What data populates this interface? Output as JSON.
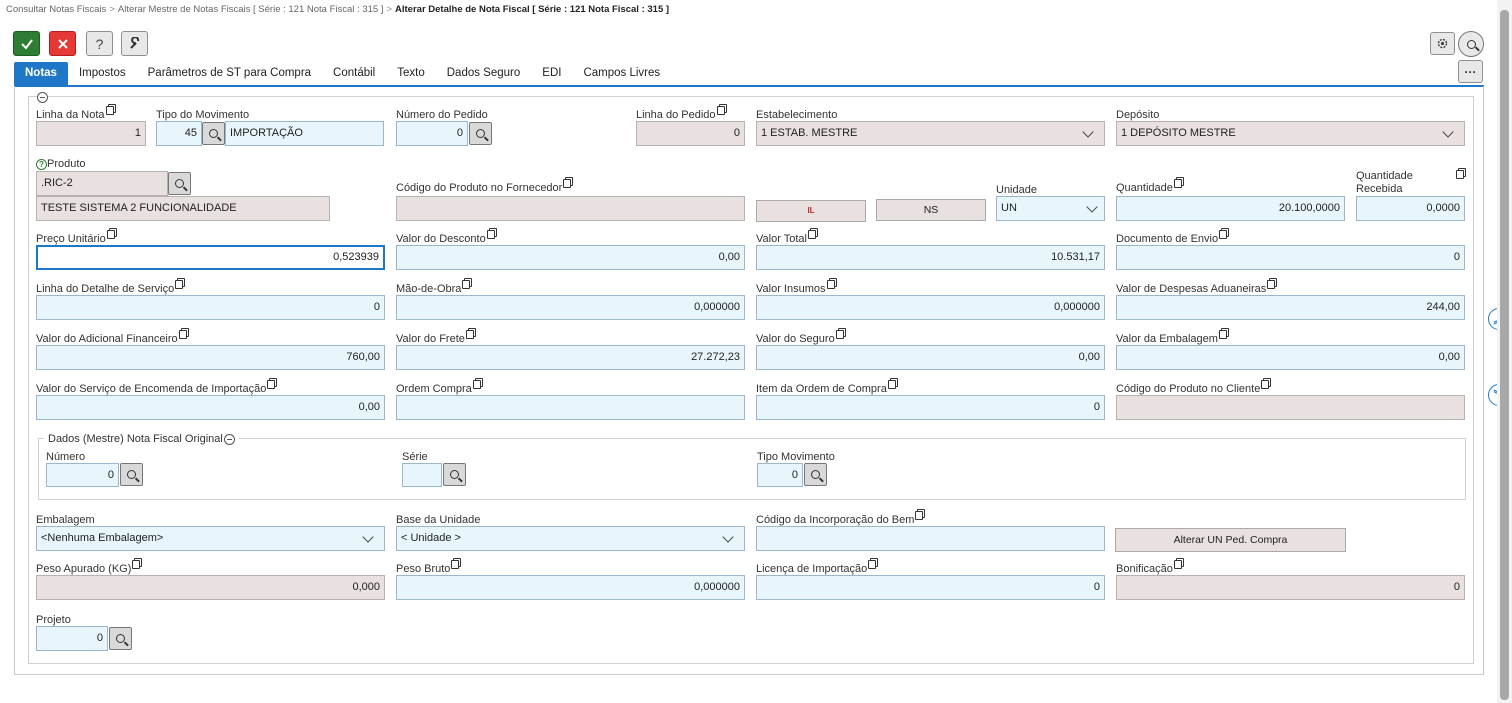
{
  "breadcrumb": {
    "items": [
      "Consultar Notas Fiscais",
      "Alterar Mestre de Notas Fiscais [ Série : 121 Nota Fiscal : 315 ]"
    ],
    "current": "Alterar Detalhe de Nota Fiscal [ Série : 121 Nota Fiscal : 315 ]",
    "separator": ">"
  },
  "toolbar": {
    "confirm_icon": "check-icon",
    "cancel_icon": "close-icon",
    "help_label": "?",
    "tools_icon": "wrench-icon",
    "more_label": "···"
  },
  "tabs": [
    {
      "label": "Notas",
      "active": true
    },
    {
      "label": "Impostos"
    },
    {
      "label": "Parâmetros de ST para Compra"
    },
    {
      "label": "Contábil"
    },
    {
      "label": "Texto"
    },
    {
      "label": "Dados Seguro"
    },
    {
      "label": "EDI"
    },
    {
      "label": "Campos Livres"
    }
  ],
  "form": {
    "linha_nota": {
      "label": "Linha da Nota",
      "value": "1"
    },
    "tipo_movimento": {
      "label": "Tipo do Movimento",
      "code": "45",
      "desc": "IMPORTAÇÃO"
    },
    "numero_pedido": {
      "label": "Número do Pedido",
      "value": "0"
    },
    "linha_pedido": {
      "label": "Linha do Pedido",
      "value": "0"
    },
    "estabelecimento": {
      "label": "Estabelecimento",
      "value": "1 ESTAB. MESTRE"
    },
    "deposito": {
      "label": "Depósito",
      "value": "1 DEPÓSITO MESTRE"
    },
    "produto": {
      "label": "Produto",
      "code": ".RIC-2",
      "desc": "TESTE SISTEMA 2 FUNCIONALIDADE"
    },
    "codigo_fornecedor": {
      "label": "Código do Produto no Fornecedor",
      "value": ""
    },
    "btn_il": "IL",
    "btn_ns": "NS",
    "unidade": {
      "label": "Unidade",
      "value": "UN"
    },
    "quantidade": {
      "label": "Quantidade",
      "value": "20.100,0000"
    },
    "quantidade_recebida": {
      "label1": "Quantidade",
      "label2": "Recebida",
      "value": "0,0000"
    },
    "preco_unitario": {
      "label": "Preço Unitário",
      "value": "0,523939"
    },
    "valor_desconto": {
      "label": "Valor do Desconto",
      "value": "0,00"
    },
    "valor_total": {
      "label": "Valor Total",
      "value": "10.531,17"
    },
    "documento_envio": {
      "label": "Documento de Envio",
      "value": "0"
    },
    "linha_servico": {
      "label": "Linha do Detalhe de Serviço",
      "value": "0"
    },
    "mao_obra": {
      "label": "Mão-de-Obra",
      "value": "0,000000"
    },
    "valor_insumos": {
      "label": "Valor Insumos",
      "value": "0,000000"
    },
    "despesas_aduaneiras": {
      "label": "Valor de Despesas Aduaneiras",
      "value": "244,00"
    },
    "adicional_financeiro": {
      "label": "Valor do Adicional Financeiro",
      "value": "760,00"
    },
    "valor_frete": {
      "label": "Valor do Frete",
      "value": "27.272,23"
    },
    "valor_seguro": {
      "label": "Valor do Seguro",
      "value": "0,00"
    },
    "valor_embalagem": {
      "label": "Valor da Embalagem",
      "value": "0,00"
    },
    "servico_encomenda": {
      "label": "Valor do Serviço de Encomenda de Importação",
      "value": "0,00"
    },
    "ordem_compra": {
      "label": "Ordem Compra",
      "value": ""
    },
    "item_ordem_compra": {
      "label": "Item da Ordem de Compra",
      "value": "0"
    },
    "codigo_cliente": {
      "label": "Código do Produto no Cliente",
      "value": ""
    },
    "nf_original": {
      "legend": "Dados (Mestre) Nota Fiscal Original",
      "numero": {
        "label": "Número",
        "value": "0"
      },
      "serie": {
        "label": "Série",
        "value": ""
      },
      "tipo_movimento": {
        "label": "Tipo Movimento",
        "value": "0"
      }
    },
    "embalagem": {
      "label": "Embalagem",
      "value": "<Nenhuma Embalagem>"
    },
    "base_unidade": {
      "label": "Base da Unidade",
      "value": "< Unidade >"
    },
    "incorporacao_bem": {
      "label": "Código da Incorporação do Bem",
      "value": ""
    },
    "btn_alterar_un": "Alterar UN Ped. Compra",
    "peso_apurado": {
      "label": "Peso Apurado (KG)",
      "value": "0,000"
    },
    "peso_bruto": {
      "label": "Peso Bruto",
      "value": "0,000000"
    },
    "licenca_importacao": {
      "label": "Licença de Importação",
      "value": "0"
    },
    "bonificacao": {
      "label": "Bonificação",
      "value": "0"
    },
    "projeto": {
      "label": "Projeto",
      "value": "0"
    }
  }
}
